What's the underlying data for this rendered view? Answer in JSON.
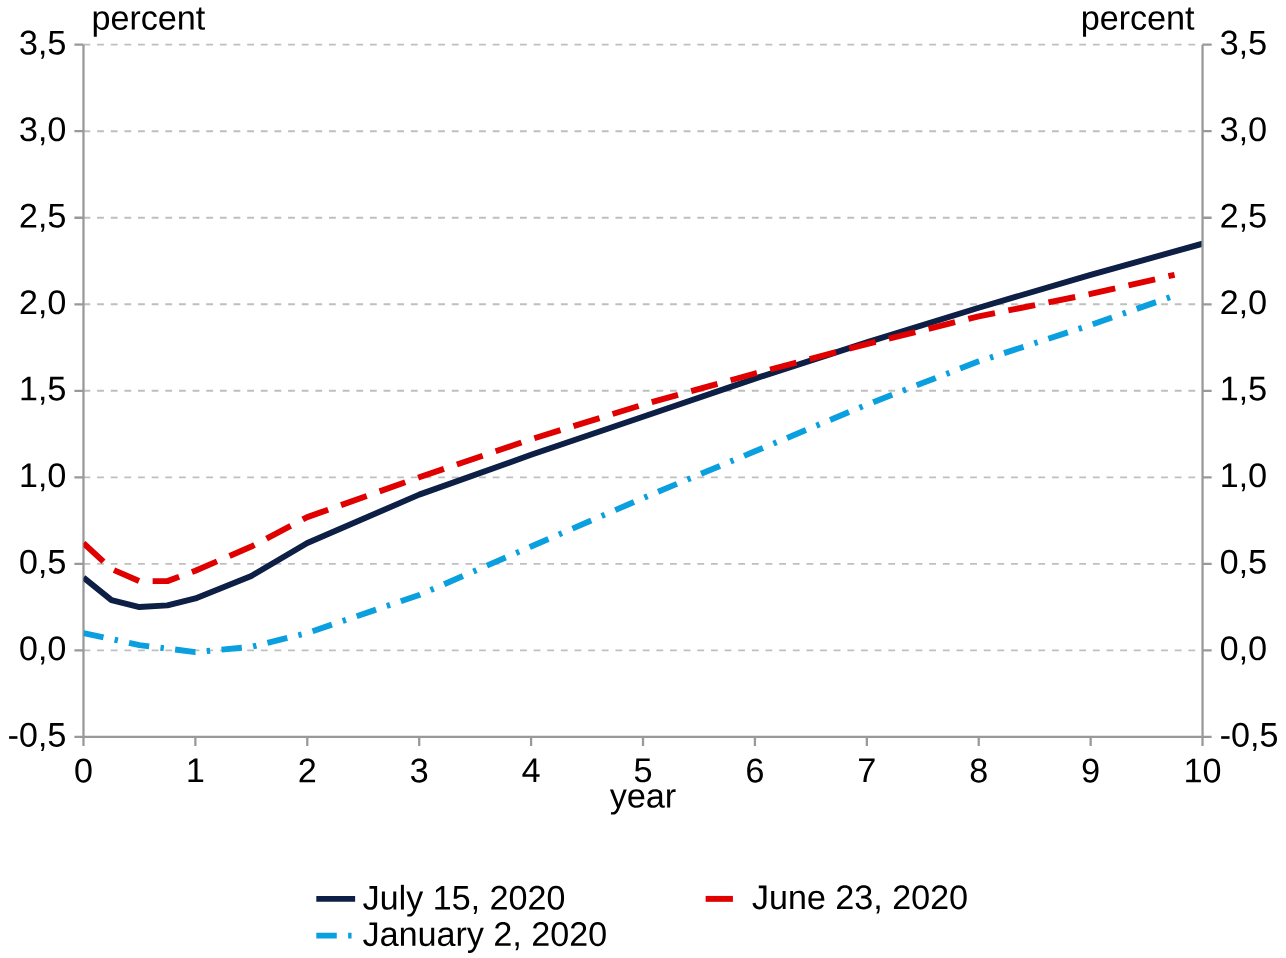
{
  "chart_data": {
    "type": "line",
    "xlabel": "year",
    "ylabel": "percent",
    "y2label": "percent",
    "xlim": [
      0,
      10
    ],
    "xticks": [
      0,
      1,
      2,
      3,
      4,
      5,
      6,
      7,
      8,
      9,
      10
    ],
    "ylim": [
      -0.5,
      3.5
    ],
    "yticks": [
      {
        "value": -0.5,
        "label": "-0,5"
      },
      {
        "value": 0,
        "label": "0,0"
      },
      {
        "value": 0.5,
        "label": "0,5"
      },
      {
        "value": 1,
        "label": "1,0"
      },
      {
        "value": 1.5,
        "label": "1,5"
      },
      {
        "value": 2,
        "label": "2,0"
      },
      {
        "value": 2.5,
        "label": "2,5"
      },
      {
        "value": 3,
        "label": "3,0"
      },
      {
        "value": 3.5,
        "label": "3,5"
      }
    ],
    "y2lim": [
      -0.5,
      3.5
    ],
    "y2ticks": [
      {
        "value": -0.5,
        "label": "-0,5"
      },
      {
        "value": 0,
        "label": "0,0"
      },
      {
        "value": 0.5,
        "label": "0,5"
      },
      {
        "value": 1,
        "label": "1,0"
      },
      {
        "value": 1.5,
        "label": "1,5"
      },
      {
        "value": 2,
        "label": "2,0"
      },
      {
        "value": 2.5,
        "label": "2,5"
      },
      {
        "value": 3,
        "label": "3,0"
      },
      {
        "value": 3.5,
        "label": "3,5"
      }
    ],
    "grid": "y",
    "legend": "bottom",
    "series": [
      {
        "name": "July 15, 2020",
        "color": "#0d1f45",
        "line_style": "solid",
        "x": [
          0,
          0.25,
          0.5,
          0.75,
          1,
          1.5,
          2,
          3,
          4,
          5,
          6,
          7,
          8,
          9,
          10
        ],
        "values": [
          0.42,
          0.29,
          0.25,
          0.26,
          0.3,
          0.43,
          0.62,
          0.9,
          1.13,
          1.35,
          1.57,
          1.78,
          1.98,
          2.17,
          2.35
        ]
      },
      {
        "name": "June 23, 2020",
        "color": "#e00000",
        "line_style": "dashed",
        "x": [
          0,
          0.25,
          0.5,
          0.75,
          1,
          1.5,
          2,
          3,
          4,
          5,
          6,
          7,
          8,
          9,
          9.75
        ],
        "values": [
          0.62,
          0.47,
          0.4,
          0.4,
          0.46,
          0.6,
          0.77,
          1.0,
          1.22,
          1.42,
          1.6,
          1.77,
          1.93,
          2.06,
          2.17
        ]
      },
      {
        "name": "January 2, 2020",
        "color": "#0aa0e0",
        "line_style": "dashdot",
        "x": [
          0,
          0.5,
          1,
          1.5,
          2,
          3,
          4,
          5,
          6,
          7,
          8,
          9,
          9.75
        ],
        "values": [
          0.1,
          0.03,
          -0.01,
          0.02,
          0.1,
          0.32,
          0.6,
          0.88,
          1.15,
          1.42,
          1.67,
          1.88,
          2.05
        ]
      }
    ]
  }
}
